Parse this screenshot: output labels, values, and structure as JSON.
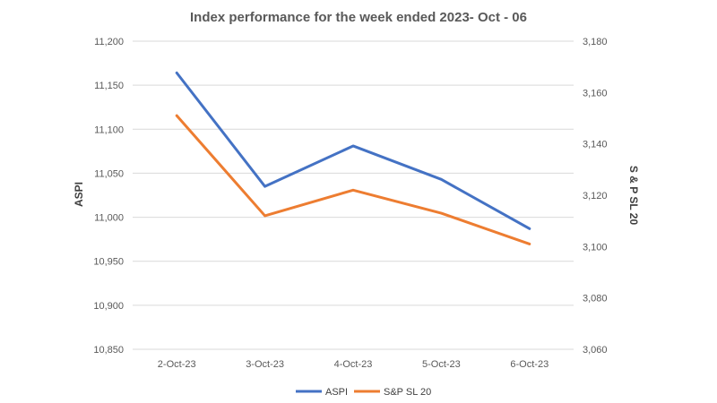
{
  "chart_data": {
    "type": "line",
    "title": "Index performance for the week ended 2023- Oct - 06",
    "categories": [
      "2-Oct-23",
      "3-Oct-23",
      "4-Oct-23",
      "5-Oct-23",
      "6-Oct-23"
    ],
    "series": [
      {
        "name": "ASPI",
        "axis": "left",
        "color": "#4472c4",
        "values": [
          11164,
          11035,
          11081,
          11043,
          10987
        ]
      },
      {
        "name": "S&P SL 20",
        "axis": "right",
        "color": "#ed7d31",
        "values": [
          3151,
          3112,
          3122,
          3113,
          3101
        ]
      }
    ],
    "ylabel_left": "ASPI",
    "ylabel_right": "S & P SL 20",
    "ylim_left": [
      10850,
      11200
    ],
    "ylim_right": [
      3060,
      3180
    ],
    "yticks_left": [
      "10,850",
      "10,900",
      "10,950",
      "11,000",
      "11,050",
      "11,100",
      "11,150",
      "11,200"
    ],
    "yticks_right": [
      "3,060",
      "3,080",
      "3,100",
      "3,120",
      "3,140",
      "3,160",
      "3,180"
    ],
    "grid": true,
    "legend": "bottom"
  }
}
